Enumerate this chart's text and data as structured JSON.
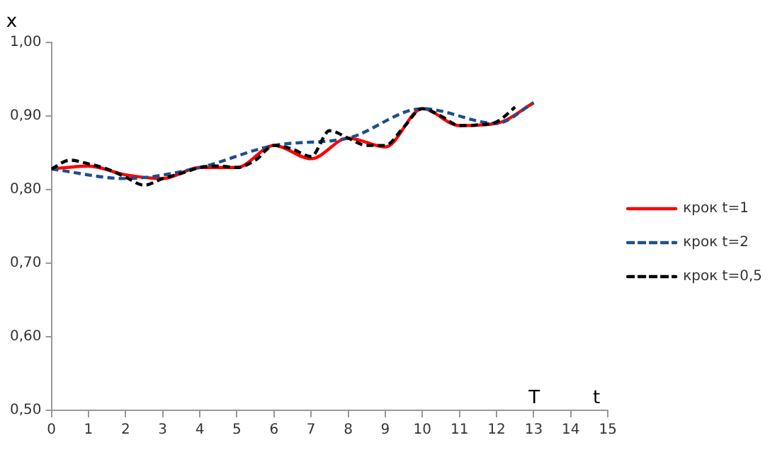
{
  "chart_data": {
    "type": "line",
    "xlabel": "t",
    "ylabel": "x",
    "xlim": [
      0,
      15
    ],
    "xticks": [
      0,
      1,
      2,
      3,
      4,
      5,
      6,
      7,
      8,
      9,
      10,
      11,
      12,
      13,
      14,
      15
    ],
    "ylim": [
      0.5,
      1.0
    ],
    "yticks": [
      {
        "value": 0.5,
        "label": "0,50"
      },
      {
        "value": 0.6,
        "label": "0,60"
      },
      {
        "value": 0.7,
        "label": "0,70"
      },
      {
        "value": 0.8,
        "label": "0,80"
      },
      {
        "value": 0.9,
        "label": "0,90"
      },
      {
        "value": 1.0,
        "label": "1,00"
      }
    ],
    "grid": false,
    "legend": "right",
    "marker": "none",
    "annotations": [
      "T"
    ],
    "series": [
      {
        "name": "крок t=1",
        "color": "#ff0000",
        "line_style": "solid",
        "x": [
          0,
          1,
          2,
          3,
          4,
          5,
          6,
          7,
          8,
          9,
          10,
          11,
          12,
          13
        ],
        "values": [
          0.828,
          0.832,
          0.82,
          0.815,
          0.83,
          0.83,
          0.86,
          0.842,
          0.87,
          0.858,
          0.91,
          0.887,
          0.89,
          0.918
        ]
      },
      {
        "name": "крок t=2",
        "color": "#1f4e8c",
        "line_style": "dashed",
        "x": [
          0,
          2,
          4,
          6,
          8,
          10,
          12,
          13
        ],
        "values": [
          0.828,
          0.815,
          0.83,
          0.86,
          0.87,
          0.91,
          0.89,
          0.918
        ]
      },
      {
        "name": "крок t=0,5",
        "color": "#000000",
        "line_style": "dashed",
        "x": [
          0,
          0.5,
          1,
          1.5,
          2,
          2.5,
          3,
          3.5,
          4,
          4.5,
          5,
          5.5,
          6,
          6.5,
          7,
          7.5,
          8,
          8.5,
          9,
          9.5,
          10,
          10.5,
          11,
          11.5,
          12,
          12.5
        ],
        "values": [
          0.828,
          0.84,
          0.835,
          0.828,
          0.817,
          0.806,
          0.815,
          0.822,
          0.83,
          0.832,
          0.83,
          0.84,
          0.86,
          0.855,
          0.845,
          0.88,
          0.87,
          0.86,
          0.86,
          0.885,
          0.91,
          0.9,
          0.887,
          0.888,
          0.892,
          0.912
        ]
      }
    ]
  }
}
